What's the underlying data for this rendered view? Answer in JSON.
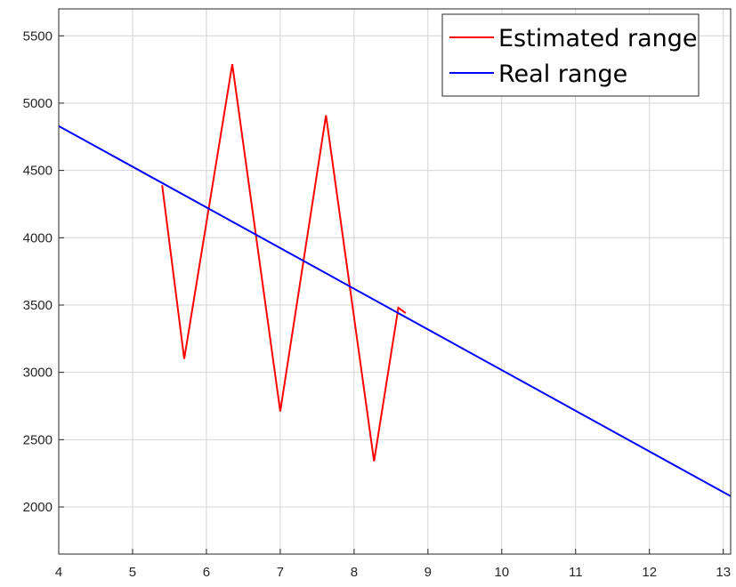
{
  "chart_data": {
    "type": "line",
    "title": "",
    "xlabel": "",
    "ylabel": "",
    "xlim": [
      4,
      13.1
    ],
    "ylim": [
      1650,
      5700
    ],
    "x_ticks": [
      4,
      5,
      6,
      7,
      8,
      9,
      10,
      11,
      12,
      13
    ],
    "x_tick_labels": [
      "4",
      "5",
      "6",
      "7",
      "8",
      "9",
      "10",
      "11",
      "12",
      "13"
    ],
    "y_ticks": [
      2000,
      2500,
      3000,
      3500,
      4000,
      4500,
      5000,
      5500
    ],
    "y_tick_labels": [
      "2000",
      "2500",
      "3000",
      "3500",
      "4000",
      "4500",
      "5000",
      "5500"
    ],
    "grid": true,
    "legend_position": "top-right",
    "series": [
      {
        "name": "Estimated range",
        "color": "#ff0000",
        "x": [
          5.4,
          5.7,
          6.35,
          7.0,
          7.62,
          8.27,
          8.6,
          8.7
        ],
        "y": [
          4390,
          3100,
          5290,
          2710,
          4910,
          2340,
          3480,
          3440
        ]
      },
      {
        "name": "Real range",
        "color": "#0000ff",
        "x": [
          4.0,
          13.1
        ],
        "y": [
          4830,
          2080
        ]
      }
    ]
  }
}
